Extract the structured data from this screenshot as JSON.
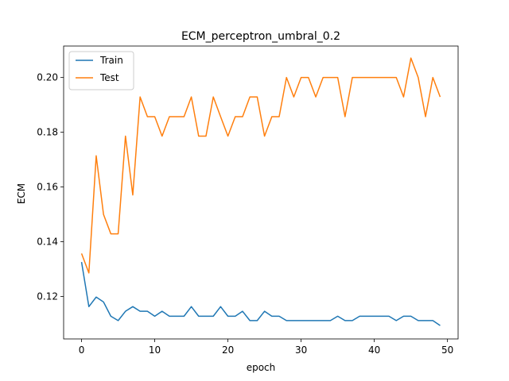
{
  "chart_data": {
    "type": "line",
    "title": "ECM_perceptron_umbral_0.2",
    "xlabel": "epoch",
    "ylabel": "ECM",
    "xlim": [
      -2.45,
      51.45
    ],
    "ylim": [
      0.1045,
      0.2115
    ],
    "xticks": [
      0,
      10,
      20,
      30,
      40,
      50
    ],
    "yticks": [
      0.12,
      0.14,
      0.16,
      0.18,
      0.2
    ],
    "ytick_labels": [
      "0.12",
      "0.14",
      "0.16",
      "0.18",
      "0.20"
    ],
    "grid": false,
    "legend": "upper-left",
    "x": [
      0,
      1,
      2,
      3,
      4,
      5,
      6,
      7,
      8,
      9,
      10,
      11,
      12,
      13,
      14,
      15,
      16,
      17,
      18,
      19,
      20,
      21,
      22,
      23,
      24,
      25,
      26,
      27,
      28,
      29,
      30,
      31,
      32,
      33,
      34,
      35,
      36,
      37,
      38,
      39,
      40,
      41,
      42,
      43,
      44,
      45,
      46,
      47,
      48,
      49
    ],
    "series": [
      {
        "name": "Train",
        "color": "#1f77b4",
        "values": [
          0.1326,
          0.1163,
          0.1198,
          0.118,
          0.1128,
          0.1112,
          0.1146,
          0.1163,
          0.1146,
          0.1146,
          0.1128,
          0.1146,
          0.1128,
          0.1128,
          0.1128,
          0.1163,
          0.1128,
          0.1128,
          0.1128,
          0.1163,
          0.1128,
          0.1128,
          0.1146,
          0.1112,
          0.1112,
          0.1146,
          0.1128,
          0.1128,
          0.1112,
          0.1112,
          0.1112,
          0.1112,
          0.1112,
          0.1112,
          0.1112,
          0.1128,
          0.1112,
          0.1112,
          0.1128,
          0.1128,
          0.1128,
          0.1128,
          0.1128,
          0.1112,
          0.1128,
          0.1128,
          0.1112,
          0.1112,
          0.1112,
          0.1094
        ]
      },
      {
        "name": "Test",
        "color": "#ff7f0e",
        "values": [
          0.1357,
          0.1286,
          0.1714,
          0.15,
          0.1429,
          0.1429,
          0.1786,
          0.1571,
          0.1929,
          0.1857,
          0.1857,
          0.1786,
          0.1857,
          0.1857,
          0.1857,
          0.1929,
          0.1786,
          0.1786,
          0.1929,
          0.1857,
          0.1786,
          0.1857,
          0.1857,
          0.1929,
          0.1929,
          0.1786,
          0.1857,
          0.1857,
          0.2,
          0.1929,
          0.2,
          0.2,
          0.1929,
          0.2,
          0.2,
          0.2,
          0.1857,
          0.2,
          0.2,
          0.2,
          0.2,
          0.2,
          0.2,
          0.2,
          0.1929,
          0.2071,
          0.2,
          0.1857,
          0.2,
          0.1929
        ]
      }
    ]
  }
}
